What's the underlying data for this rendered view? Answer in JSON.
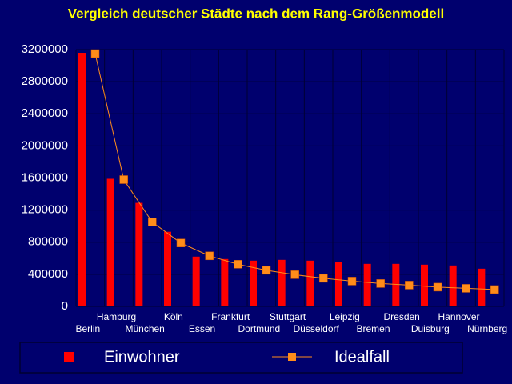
{
  "chart_data": {
    "type": "bar-line",
    "title": "Vergleich deutscher Städte nach dem Rang-Größenmodell",
    "categories": [
      "Berlin",
      "Hamburg",
      "München",
      "Köln",
      "Essen",
      "Frankfurt",
      "Dortmund",
      "Stuttgart",
      "Düsseldorf",
      "Leipzig",
      "Bremen",
      "Dresden",
      "Duisburg",
      "Hannover",
      "Nürnberg"
    ],
    "series": [
      {
        "name": "Einwohner",
        "type": "bar",
        "color": "#ff0000",
        "values": [
          3160000,
          1590000,
          1290000,
          930000,
          620000,
          590000,
          570000,
          580000,
          570000,
          550000,
          530000,
          530000,
          520000,
          510000,
          470000
        ]
      },
      {
        "name": "Idealfall",
        "type": "line",
        "color": "#ff8c1a",
        "values": [
          3150000,
          1580000,
          1050000,
          790000,
          630000,
          525000,
          450000,
          395000,
          350000,
          315000,
          285000,
          265000,
          240000,
          225000,
          210000
        ]
      }
    ],
    "ylim": [
      0,
      3200000
    ],
    "yticks": [
      0,
      400000,
      800000,
      1200000,
      1600000,
      2000000,
      2400000,
      2800000,
      3200000
    ],
    "grid": true
  }
}
